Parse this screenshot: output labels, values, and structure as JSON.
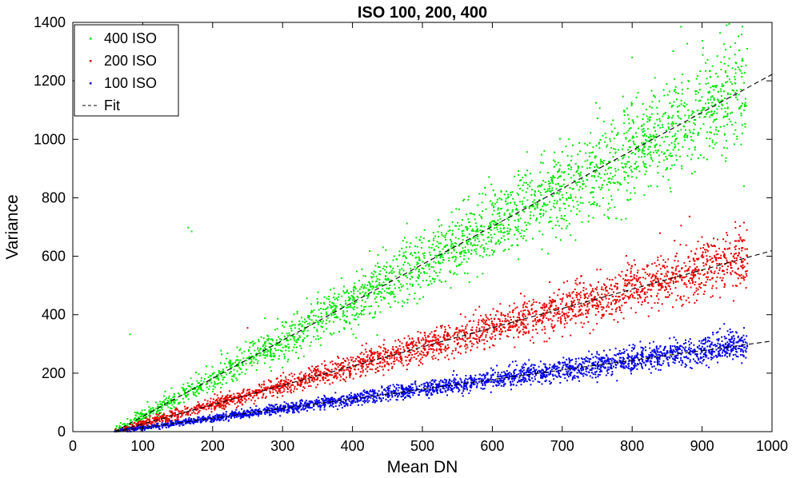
{
  "chart_data": {
    "type": "scatter",
    "title": "ISO 100, 200, 400",
    "xlabel": "Mean DN",
    "ylabel": "Variance",
    "xlim": [
      0,
      1000
    ],
    "ylim": [
      0,
      1400
    ],
    "xticks": [
      0,
      100,
      200,
      300,
      400,
      500,
      600,
      700,
      800,
      900,
      1000
    ],
    "yticks": [
      0,
      200,
      400,
      600,
      800,
      1000,
      1200,
      1400
    ],
    "grid": false,
    "legend_position": "top-left",
    "series": [
      {
        "name": "400 ISO",
        "color": "#00e600",
        "marker": "dot",
        "x_range": [
          60,
          965
        ],
        "fit_slope": 1.3,
        "fit_intercept": -78,
        "spread": [
          10,
          110
        ],
        "points": [
          [
            82,
            333
          ],
          [
            165,
            698
          ],
          [
            170,
            685
          ],
          [
            800,
            1280
          ],
          [
            870,
            1385
          ],
          [
            935,
            1390
          ],
          [
            960,
            840
          ]
        ]
      },
      {
        "name": "200 ISO",
        "color": "#e60000",
        "marker": "dot",
        "x_range": [
          60,
          965
        ],
        "fit_slope": 0.658,
        "fit_intercept": -39,
        "spread": [
          5,
          55
        ],
        "points": [
          [
            250,
            355
          ],
          [
            870,
            705
          ],
          [
            960,
            715
          ]
        ]
      },
      {
        "name": "100 ISO",
        "color": "#0000e6",
        "marker": "dot",
        "x_range": [
          60,
          965
        ],
        "fit_slope": 0.33,
        "fit_intercept": -19.5,
        "spread": [
          3,
          28
        ],
        "points": [
          [
            940,
            350
          ],
          [
            960,
            355
          ]
        ]
      },
      {
        "name": "Fit",
        "color": "#000000",
        "style": "dashed",
        "lines": [
          {
            "x": [
              60,
              1000
            ],
            "y": [
              0,
              1222
            ]
          },
          {
            "x": [
              60,
              1000
            ],
            "y": [
              0,
              619
            ]
          },
          {
            "x": [
              60,
              1000
            ],
            "y": [
              0,
              310
            ]
          }
        ]
      }
    ]
  }
}
